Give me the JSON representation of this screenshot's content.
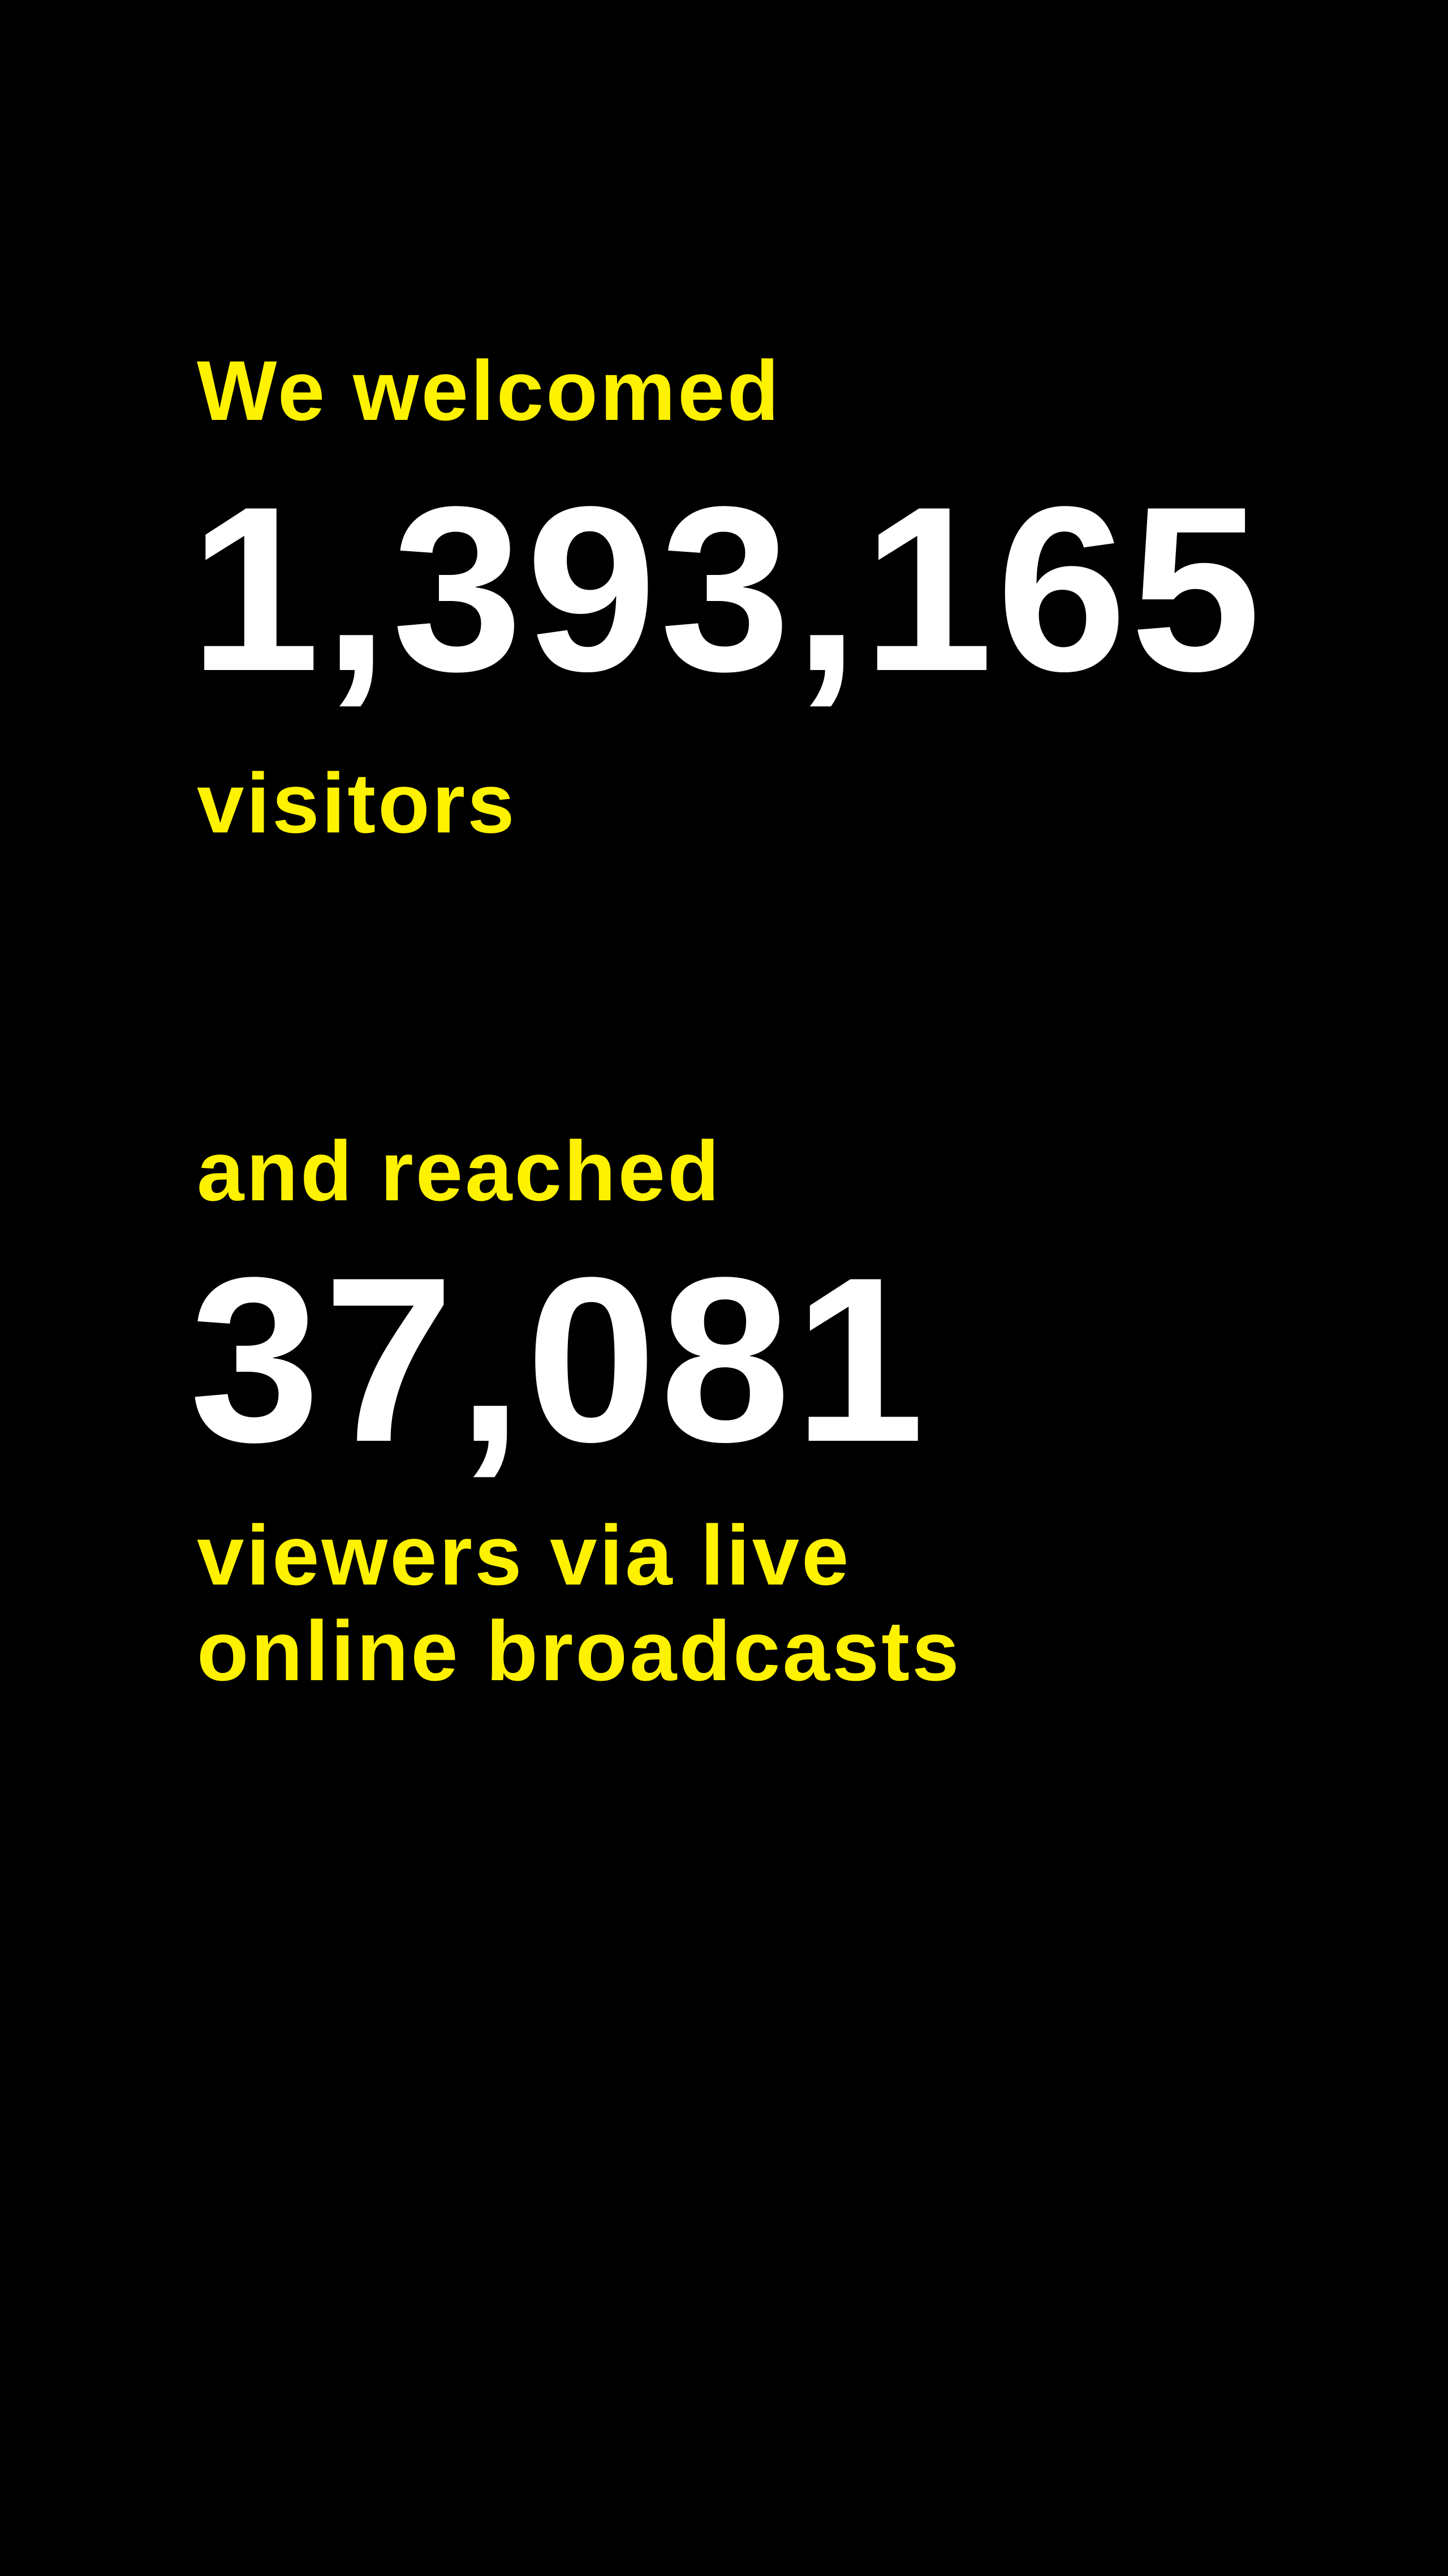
{
  "colors": {
    "background": "#000000",
    "accent": "#fff200",
    "number": "#ffffff"
  },
  "visitors_block": {
    "intro": "We welcomed",
    "value": "1,393,165",
    "unit": "visitors"
  },
  "viewers_block": {
    "intro": "and reached",
    "value": "37,081",
    "unit_line1": "viewers via live",
    "unit_line2": "online broadcasts"
  }
}
